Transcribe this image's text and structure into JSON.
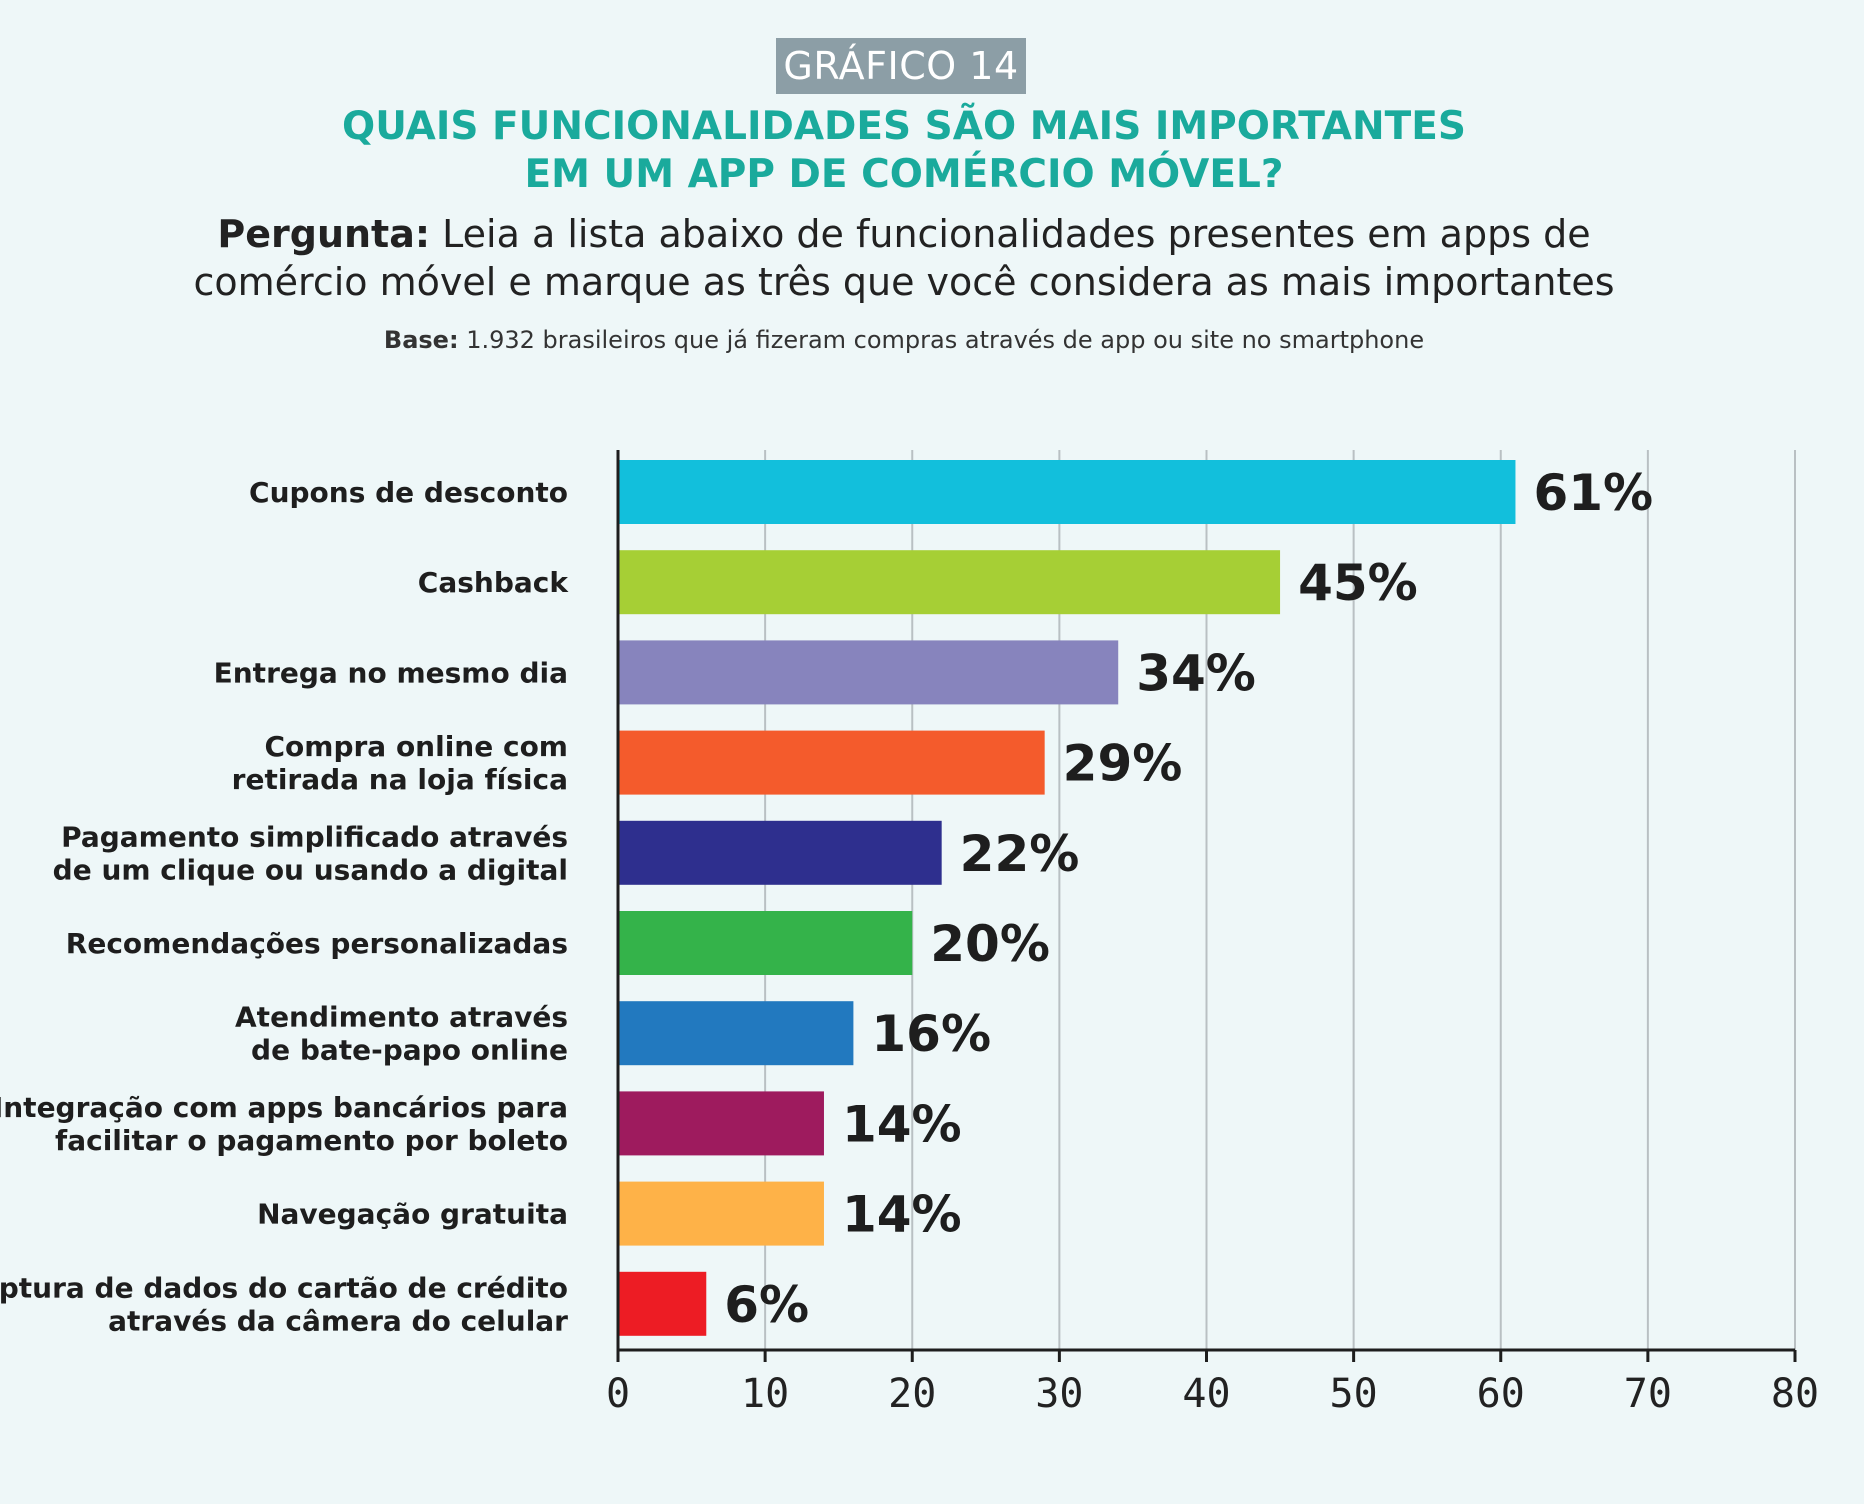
{
  "header": {
    "badge": "GRÁFICO 14",
    "title_line1": "QUAIS FUNCIONALIDADES SÃO MAIS IMPORTANTES",
    "title_line2": "EM UM APP DE COMÉRCIO MÓVEL?",
    "question_label": "Pergunta:",
    "question_line1": " Leia a lista abaixo de funcionalidades presentes em apps de",
    "question_line2": "comércio móvel e marque as três que você considera as mais importantes",
    "base_label": "Base:",
    "base_text": " 1.932 brasileiros que já fizeram compras através de app ou site no smartphone"
  },
  "colors": {
    "background": "#eef7f8",
    "badge": "#8c9ea6",
    "title": "#1aaa9c",
    "grid": "#b9c0c3",
    "axis": "#1e1e1e"
  },
  "chart_data": {
    "type": "bar",
    "orientation": "horizontal",
    "categories": [
      [
        "Cupons de desconto"
      ],
      [
        "Cashback"
      ],
      [
        "Entrega no mesmo dia"
      ],
      [
        "Compra online com",
        "retirada na loja física"
      ],
      [
        "Pagamento simplificado através",
        "de um clique ou usando a digital"
      ],
      [
        "Recomendações personalizadas"
      ],
      [
        "Atendimento através",
        "de bate-papo online"
      ],
      [
        "Integração com apps bancários para",
        "facilitar o pagamento por boleto"
      ],
      [
        "Navegação gratuita"
      ],
      [
        "Captura de dados do cartão de crédito",
        "através da câmera do celular"
      ]
    ],
    "values": [
      61,
      45,
      34,
      29,
      22,
      20,
      16,
      14,
      14,
      6
    ],
    "value_labels": [
      "61%",
      "45%",
      "34%",
      "29%",
      "22%",
      "20%",
      "16%",
      "14%",
      "14%",
      "6%"
    ],
    "bar_colors": [
      "#12bfdc",
      "#a6cf35",
      "#8784bd",
      "#f45b2c",
      "#2e2f8e",
      "#34b34a",
      "#2279bf",
      "#9e1b5e",
      "#feb248",
      "#ed1c24"
    ],
    "xlim": [
      0,
      80
    ],
    "xticks": [
      0,
      10,
      20,
      30,
      40,
      50,
      60,
      70,
      80
    ],
    "grid": true
  }
}
